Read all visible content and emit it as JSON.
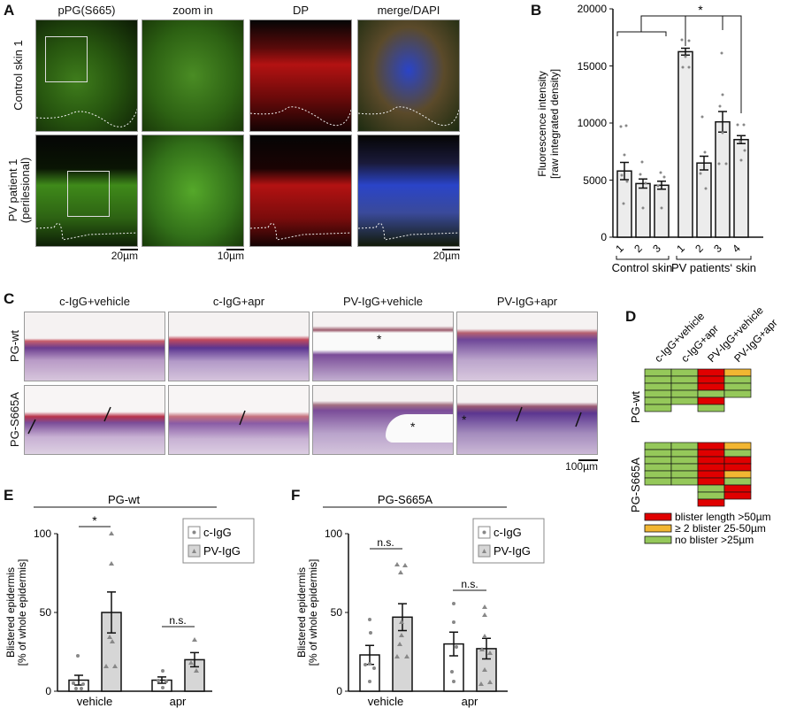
{
  "panel_a": {
    "label": "A",
    "columns": [
      "pPG(S665)",
      "zoom in",
      "DP",
      "merge/DAPI"
    ],
    "rows": [
      {
        "label_lines": [
          "Control skin 1"
        ]
      },
      {
        "label_lines": [
          "PV patient 1",
          "(perilesional)"
        ]
      }
    ],
    "scale_bars": [
      "20µm",
      "10µm",
      "20µm"
    ],
    "colors": {
      "green": "#2f6b12",
      "red": "#b31212",
      "blue": "#1f3fd6",
      "black": "#050505"
    }
  },
  "panel_c": {
    "label": "C",
    "columns": [
      "c-IgG+vehicle",
      "c-IgG+apr",
      "PV-IgG+vehicle",
      "PV-IgG+apr"
    ],
    "rows": [
      "PG-wt",
      "PG-S665A"
    ],
    "scale_bar": "100µm",
    "blister_marker": "*"
  },
  "panel_d": {
    "label": "D",
    "columns": [
      "c-IgG+vehicle",
      "c-IgG+apr",
      "PV-IgG+vehicle",
      "PV-IgG+apr"
    ],
    "legend": [
      {
        "label": "blister length >50µm",
        "color": "#e00000"
      },
      {
        "label": "≥ 2 blister 25-50µm",
        "color": "#f2b632"
      },
      {
        "label": "no blister >25µm",
        "color": "#95c85a"
      }
    ]
  },
  "chart_data": [
    {
      "id": "B",
      "type": "bar",
      "title": "",
      "ylabel": "Fluorescence intensity [raw integrated density]",
      "ylabel_lines": [
        "Fluorescence intensity",
        "[raw integrated density]"
      ],
      "xlabel": "",
      "ylim": [
        0,
        20000
      ],
      "yticks": [
        0,
        5000,
        10000,
        15000,
        20000
      ],
      "categories": [
        "1",
        "2",
        "3",
        "1",
        "2",
        "3",
        "4"
      ],
      "groups": [
        {
          "name": "Control skin",
          "indices": [
            0,
            1,
            2
          ]
        },
        {
          "name": "PV patients‘ skin",
          "indices": [
            3,
            4,
            5,
            6
          ]
        }
      ],
      "values": [
        5800,
        4700,
        4550,
        16250,
        6500,
        10100,
        8550
      ],
      "sem": [
        750,
        400,
        350,
        300,
        600,
        900,
        350
      ],
      "significance": {
        "label": "*",
        "comparison": "Control skin vs PV patients 1, 3, 4"
      },
      "grid": false,
      "bar_color": "#ececec"
    },
    {
      "id": "E",
      "type": "bar",
      "title": "PG-wt",
      "ylabel": "Blistered epidermis [% of whole epidermis]",
      "ylabel_lines": [
        "Blistered epidermis",
        "[% of whole epidermis]"
      ],
      "ylim": [
        0,
        100
      ],
      "yticks": [
        0,
        50,
        100
      ],
      "categories": [
        "vehicle",
        "apr"
      ],
      "series": [
        {
          "name": "c-IgG",
          "values": [
            7,
            7
          ],
          "sem": [
            3,
            2
          ],
          "color": "#ffffff",
          "marker": "circle"
        },
        {
          "name": "PV-IgG",
          "values": [
            50,
            20
          ],
          "sem": [
            13,
            4.5
          ],
          "color": "#d6d6d6",
          "marker": "triangle"
        }
      ],
      "significance": [
        "*",
        "n.s."
      ],
      "legend": [
        "c-IgG",
        "PV-IgG"
      ],
      "legend_position": "top-right"
    },
    {
      "id": "F",
      "type": "bar",
      "title": "PG-S665A",
      "ylabel": "Blistered epidermis [% of whole epidermis]",
      "ylabel_lines": [
        "Blistered epidermis",
        "[% of whole epidermis]"
      ],
      "ylim": [
        0,
        100
      ],
      "yticks": [
        0,
        50,
        100
      ],
      "categories": [
        "vehicle",
        "apr"
      ],
      "series": [
        {
          "name": "c-IgG",
          "values": [
            23,
            30
          ],
          "sem": [
            6,
            7.5
          ],
          "color": "#ffffff",
          "marker": "circle"
        },
        {
          "name": "PV-IgG",
          "values": [
            47,
            27
          ],
          "sem": [
            8.5,
            6.5
          ],
          "color": "#d6d6d6",
          "marker": "triangle"
        }
      ],
      "significance": [
        "n.s.",
        "n.s."
      ],
      "legend": [
        "c-IgG",
        "PV-IgG"
      ],
      "legend_position": "top-right"
    },
    {
      "id": "D",
      "type": "heatmap",
      "title": "",
      "columns": [
        "c-IgG+vehicle",
        "c-IgG+apr",
        "PV-IgG+vehicle",
        "PV-IgG+apr"
      ],
      "legend_codes": {
        "R": "blister length >50µm",
        "Y": "≥ 2 blister 25-50µm",
        "G": "no blister >25µm"
      },
      "blocks": [
        {
          "name": "PG-wt",
          "columns": [
            [
              "G",
              "G",
              "G",
              "G",
              "G",
              "G"
            ],
            [
              "G",
              "G",
              "G",
              "G",
              "G"
            ],
            [
              "R",
              "R",
              "R",
              "G",
              "R",
              "G"
            ],
            [
              "Y",
              "G",
              "G",
              "G"
            ]
          ]
        },
        {
          "name": "PG-S665A",
          "columns": [
            [
              "G",
              "G",
              "G",
              "G",
              "G",
              "G"
            ],
            [
              "G",
              "G",
              "G",
              "G",
              "G",
              "G"
            ],
            [
              "R",
              "R",
              "R",
              "R",
              "R",
              "R",
              "G",
              "G",
              "R"
            ],
            [
              "Y",
              "G",
              "R",
              "R",
              "Y",
              "G",
              "R",
              "R"
            ]
          ]
        }
      ]
    }
  ]
}
